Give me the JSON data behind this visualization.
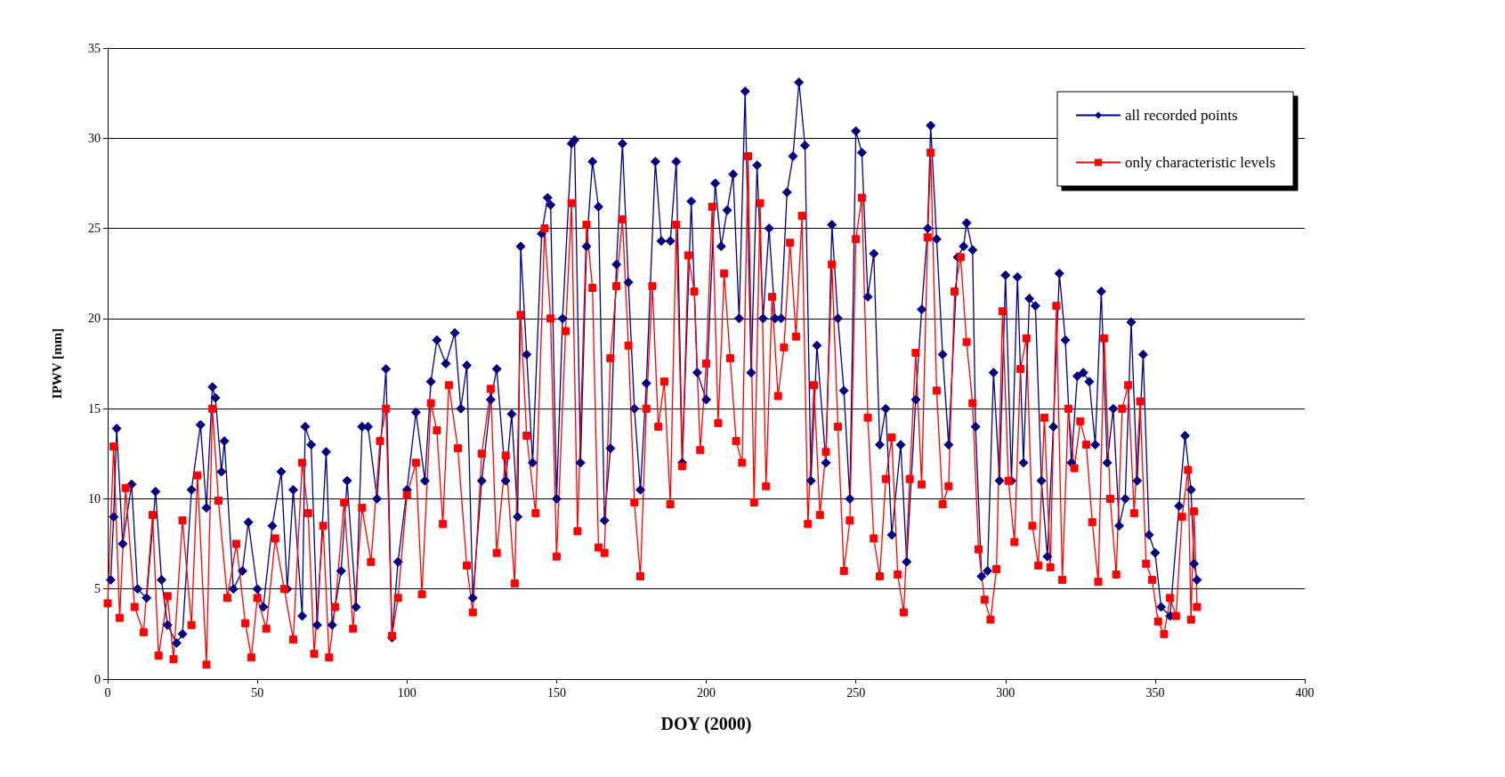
{
  "chart_data": {
    "type": "line",
    "xlabel": "DOY (2000)",
    "ylabel": "IPWV [mm]",
    "xlim": [
      0,
      400
    ],
    "xticks": [
      0,
      50,
      100,
      150,
      200,
      250,
      300,
      350,
      400
    ],
    "ylim": [
      0,
      35
    ],
    "yticks": [
      0,
      5,
      10,
      15,
      20,
      25,
      30,
      35
    ],
    "grid": "y",
    "legend": "top right",
    "line_style": "solid",
    "series": [
      {
        "name": "all recorded points",
        "color": "#000080",
        "marker": "diamond",
        "x": [
          1,
          2,
          3,
          5,
          8,
          10,
          13,
          16,
          18,
          20,
          23,
          25,
          28,
          31,
          33,
          35,
          36,
          38,
          39,
          42,
          45,
          47,
          50,
          52,
          55,
          58,
          60,
          62,
          65,
          66,
          68,
          70,
          73,
          75,
          78,
          80,
          83,
          85,
          87,
          90,
          93,
          95,
          97,
          100,
          103,
          106,
          108,
          110,
          113,
          116,
          118,
          120,
          122,
          125,
          128,
          130,
          133,
          135,
          137,
          138,
          140,
          142,
          145,
          147,
          148,
          150,
          152,
          155,
          156,
          158,
          160,
          162,
          164,
          166,
          168,
          170,
          172,
          174,
          176,
          178,
          180,
          183,
          185,
          188,
          190,
          192,
          195,
          197,
          200,
          203,
          205,
          207,
          209,
          211,
          213,
          215,
          217,
          219,
          221,
          223,
          225,
          227,
          229,
          231,
          233,
          235,
          237,
          240,
          242,
          244,
          246,
          248,
          250,
          252,
          254,
          256,
          258,
          260,
          262,
          265,
          267,
          270,
          272,
          274,
          275,
          277,
          279,
          281,
          284,
          286,
          287,
          289,
          290,
          292,
          294,
          296,
          298,
          300,
          302,
          304,
          306,
          308,
          310,
          312,
          314,
          316,
          318,
          320,
          322,
          324,
          326,
          328,
          330,
          332,
          334,
          336,
          338,
          340,
          342,
          344,
          346,
          348,
          350,
          352,
          355,
          358,
          360,
          362,
          363,
          364
        ],
        "values": [
          5.5,
          9,
          13.9,
          7.5,
          10.8,
          5,
          4.5,
          10.4,
          5.5,
          3,
          2,
          2.5,
          10.5,
          14.1,
          9.5,
          16.2,
          15.6,
          11.5,
          13.2,
          5,
          6,
          8.7,
          5,
          4,
          8.5,
          11.5,
          5,
          10.5,
          3.5,
          14,
          13,
          3,
          12.6,
          3,
          6,
          11,
          4,
          14,
          14,
          10,
          17.2,
          2.3,
          6.5,
          10.5,
          14.8,
          11,
          16.5,
          18.8,
          17.5,
          19.2,
          15,
          17.4,
          4.5,
          11,
          15.5,
          17.2,
          11,
          14.7,
          9,
          24,
          18,
          12,
          24.7,
          26.7,
          26.3,
          10,
          20,
          29.7,
          29.9,
          12,
          24,
          28.7,
          26.2,
          8.8,
          12.8,
          23,
          29.7,
          22,
          15,
          10.5,
          16.4,
          28.7,
          24.3,
          24.3,
          28.7,
          12,
          26.5,
          17,
          15.5,
          27.5,
          24,
          26,
          28,
          20,
          32.6,
          17,
          28.5,
          20,
          25,
          20,
          20,
          27,
          29,
          33.1,
          29.6,
          11,
          18.5,
          12,
          25.2,
          20,
          16,
          10,
          30.4,
          29.2,
          21.2,
          23.6,
          13,
          15,
          8,
          13,
          6.5,
          15.5,
          20.5,
          25,
          30.7,
          24.4,
          18,
          13,
          23.4,
          24,
          25.3,
          23.8,
          14,
          5.7,
          6,
          17,
          11,
          22.4,
          11,
          22.3,
          12,
          21.1,
          20.7,
          11,
          6.8,
          14,
          22.5,
          18.8,
          12,
          16.8,
          17,
          16.5,
          13,
          21.5,
          12,
          15,
          8.5,
          10,
          19.8,
          11,
          18,
          8,
          7,
          4,
          3.5,
          9.6,
          13.5,
          10.5,
          6.4,
          5.5
        ]
      },
      {
        "name": "only characteristic levels",
        "color": "#ff0000",
        "marker": "square",
        "x": [
          0,
          2,
          4,
          6,
          9,
          12,
          15,
          17,
          20,
          22,
          25,
          28,
          30,
          33,
          35,
          37,
          40,
          43,
          46,
          48,
          50,
          53,
          56,
          59,
          62,
          65,
          67,
          69,
          72,
          74,
          76,
          79,
          82,
          85,
          88,
          91,
          93,
          95,
          97,
          100,
          103,
          105,
          108,
          110,
          112,
          114,
          117,
          120,
          122,
          125,
          128,
          130,
          133,
          136,
          138,
          140,
          143,
          146,
          148,
          150,
          153,
          155,
          157,
          160,
          162,
          164,
          166,
          168,
          170,
          172,
          174,
          176,
          178,
          180,
          182,
          184,
          186,
          188,
          190,
          192,
          194,
          196,
          198,
          200,
          202,
          204,
          206,
          208,
          210,
          212,
          214,
          216,
          218,
          220,
          222,
          224,
          226,
          228,
          230,
          232,
          234,
          236,
          238,
          240,
          242,
          244,
          246,
          248,
          250,
          252,
          254,
          256,
          258,
          260,
          262,
          264,
          266,
          268,
          270,
          272,
          274,
          275,
          277,
          279,
          281,
          283,
          285,
          287,
          289,
          291,
          293,
          295,
          297,
          299,
          301,
          303,
          305,
          307,
          309,
          311,
          313,
          315,
          317,
          319,
          321,
          323,
          325,
          327,
          329,
          331,
          333,
          335,
          337,
          339,
          341,
          343,
          345,
          347,
          349,
          351,
          353,
          355,
          357,
          359,
          361,
          362,
          363,
          364
        ],
        "values": [
          4.2,
          12.9,
          3.4,
          10.6,
          4,
          2.6,
          9.1,
          1.3,
          4.6,
          1.1,
          8.8,
          3,
          11.3,
          0.8,
          15,
          9.9,
          4.5,
          7.5,
          3.1,
          1.2,
          4.5,
          2.8,
          7.8,
          5,
          2.2,
          12,
          9.2,
          1.4,
          8.5,
          1.2,
          4,
          9.8,
          2.8,
          9.5,
          6.5,
          13.2,
          15,
          2.4,
          4.5,
          10.2,
          12,
          4.7,
          15.3,
          13.8,
          8.6,
          16.3,
          12.8,
          6.3,
          3.7,
          12.5,
          16.1,
          7,
          12.4,
          5.3,
          20.2,
          13.5,
          9.2,
          25,
          20,
          6.8,
          19.3,
          26.4,
          8.2,
          25.2,
          21.7,
          7.3,
          7,
          17.8,
          21.8,
          25.5,
          18.5,
          9.8,
          5.7,
          15,
          21.8,
          14,
          16.5,
          9.7,
          25.2,
          11.8,
          23.5,
          21.5,
          12.7,
          17.5,
          26.2,
          14.2,
          22.5,
          17.8,
          13.2,
          12,
          29,
          9.8,
          26.4,
          10.7,
          21.2,
          15.7,
          18.4,
          24.2,
          19,
          25.7,
          8.6,
          16.3,
          9.1,
          12.6,
          23,
          14,
          6,
          8.8,
          24.4,
          26.7,
          14.5,
          7.8,
          5.7,
          11.1,
          13.4,
          5.8,
          3.7,
          11.1,
          18.1,
          10.8,
          24.5,
          29.2,
          16,
          9.7,
          10.7,
          21.5,
          23.4,
          18.7,
          15.3,
          7.2,
          4.4,
          3.3,
          6.1,
          20.4,
          11,
          7.6,
          17.2,
          18.9,
          8.5,
          6.3,
          14.5,
          6.2,
          20.7,
          5.5,
          15,
          11.7,
          14.3,
          13,
          8.7,
          5.4,
          18.9,
          10,
          5.8,
          15,
          16.3,
          9.2,
          15.4,
          6.4,
          5.5,
          3.2,
          2.5,
          4.5,
          3.5,
          9,
          11.6,
          3.3,
          9.3,
          4
        ]
      }
    ]
  }
}
